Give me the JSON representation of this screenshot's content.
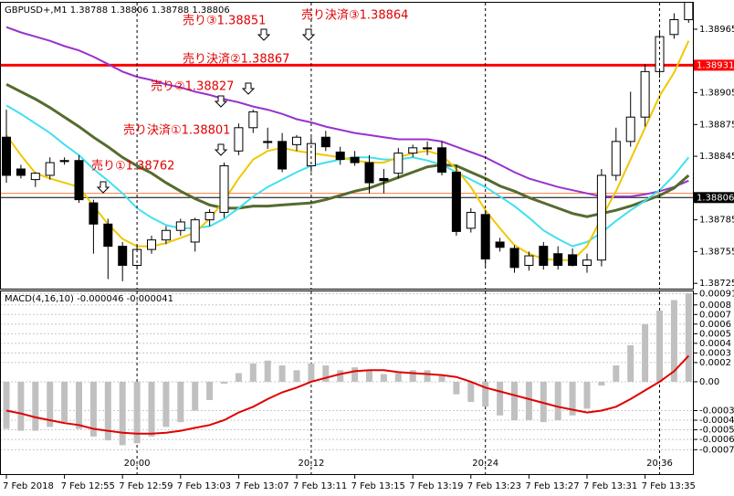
{
  "chart_data": [
    {
      "type": "candlestick",
      "title": "GBPUSD+,M1  1.38788 1.38806 1.38788 1.38806",
      "categories": [
        "7 Feb 2018",
        null,
        null,
        null,
        "7 Feb 12:55",
        null,
        null,
        null,
        "7 Feb 12:59",
        null,
        null,
        null,
        "7 Feb 13:03",
        null,
        null,
        null,
        "7 Feb 13:07",
        null,
        null,
        null,
        "7 Feb 13:11",
        null,
        null,
        null,
        "7 Feb 13:15",
        null,
        null,
        null,
        "7 Feb 13:19",
        null,
        null,
        null,
        "7 Feb 13:23",
        null,
        null,
        null,
        "7 Feb 13:27",
        null,
        null,
        null,
        "7 Feb 13:31",
        null,
        null,
        null,
        "7 Feb 13:35",
        null,
        null,
        null
      ],
      "open": [
        1.38863,
        1.38833,
        1.38823,
        1.38827,
        1.38841,
        1.38841,
        1.38801,
        1.38781,
        1.3876,
        1.38742,
        1.38757,
        1.38766,
        1.38775,
        1.38764,
        1.38785,
        1.38792,
        1.3885,
        1.38872,
        1.38859,
        1.38859,
        1.38856,
        1.38836,
        1.38863,
        1.38849,
        1.38844,
        1.38839,
        1.38824,
        1.38829,
        1.38848,
        1.38853,
        1.38853,
        1.3883,
        1.38777,
        1.3879,
        1.38764,
        1.38758,
        1.38742,
        1.3876,
        1.38753,
        1.38752,
        1.38742,
        1.38747,
        1.38827,
        1.38859,
        1.38882,
        1.38925,
        1.3896,
        1.38974
      ],
      "high": [
        1.38889,
        1.38837,
        1.3883,
        1.38844,
        1.38844,
        1.38846,
        1.38804,
        1.38786,
        1.38764,
        1.38762,
        1.3877,
        1.38779,
        1.38786,
        1.38787,
        1.38795,
        1.38839,
        1.38876,
        1.38889,
        1.38872,
        1.38867,
        1.38865,
        1.38863,
        1.38869,
        1.38854,
        1.3885,
        1.38846,
        1.38833,
        1.38853,
        1.38856,
        1.38859,
        1.38859,
        1.38837,
        1.38796,
        1.38794,
        1.38768,
        1.38761,
        1.38755,
        1.38764,
        1.3876,
        1.38758,
        1.38753,
        1.38833,
        1.38872,
        1.38906,
        1.38932,
        1.38962,
        1.3898,
        1.38993
      ],
      "low": [
        1.3882,
        1.38824,
        1.38816,
        1.38823,
        1.38837,
        1.38801,
        1.38753,
        1.38729,
        1.38727,
        1.38738,
        1.38753,
        1.38762,
        1.3877,
        1.38755,
        1.38779,
        1.38787,
        1.38846,
        1.38867,
        1.38852,
        1.3883,
        1.3885,
        1.3883,
        1.3885,
        1.38837,
        1.38836,
        1.3881,
        1.3881,
        1.38824,
        1.38844,
        1.38846,
        1.38827,
        1.3877,
        1.38773,
        1.38741,
        1.38755,
        1.38735,
        1.38737,
        1.38738,
        1.38738,
        1.38741,
        1.38735,
        1.38741,
        1.38822,
        1.38854,
        1.38873,
        1.38919,
        1.38956,
        1.38971
      ],
      "close": [
        1.38827,
        1.38827,
        1.38829,
        1.38839,
        1.3884,
        1.38804,
        1.38781,
        1.3876,
        1.38742,
        1.38757,
        1.38766,
        1.38775,
        1.38783,
        1.38785,
        1.38792,
        1.38836,
        1.38872,
        1.38887,
        1.38858,
        1.38833,
        1.38863,
        1.38857,
        1.38854,
        1.38842,
        1.38839,
        1.3882,
        1.38822,
        1.38848,
        1.38853,
        1.38852,
        1.3883,
        1.38774,
        1.38792,
        1.38748,
        1.38759,
        1.3874,
        1.38751,
        1.38742,
        1.38742,
        1.38742,
        1.38747,
        1.38827,
        1.38859,
        1.38882,
        1.38925,
        1.38958,
        1.38974,
        1.38993
      ],
      "up_color": "#ffffff",
      "down_color": "#000000",
      "overlays": [
        {
          "color": "#9932cc",
          "values": [
            1.38967,
            1.38962,
            1.38958,
            1.38954,
            1.38949,
            1.38945,
            1.38939,
            1.38932,
            1.38925,
            1.3892,
            1.38917,
            1.38913,
            1.3891,
            1.38906,
            1.38903,
            1.38899,
            1.38896,
            1.38892,
            1.38889,
            1.38885,
            1.3888,
            1.38877,
            1.38873,
            1.3887,
            1.38867,
            1.38865,
            1.38863,
            1.38861,
            1.38861,
            1.38861,
            1.38859,
            1.38854,
            1.38849,
            1.38844,
            1.38837,
            1.3883,
            1.38824,
            1.3882,
            1.38816,
            1.38813,
            1.3881,
            1.38807,
            1.38807,
            1.38807,
            1.38809,
            1.38812,
            1.38816,
            1.38822
          ]
        },
        {
          "color": "#556b2f",
          "values": [
            1.38913,
            1.38906,
            1.38899,
            1.38891,
            1.38882,
            1.38873,
            1.38863,
            1.38854,
            1.38844,
            1.38836,
            1.38829,
            1.3882,
            1.38812,
            1.38805,
            1.38799,
            1.38796,
            1.38796,
            1.38798,
            1.38798,
            1.38799,
            1.388,
            1.38801,
            1.38804,
            1.38808,
            1.38812,
            1.38815,
            1.3882,
            1.38825,
            1.3883,
            1.38835,
            1.38837,
            1.38836,
            1.3883,
            1.38824,
            1.38817,
            1.38812,
            1.38806,
            1.38801,
            1.38796,
            1.38791,
            1.38788,
            1.38791,
            1.38794,
            1.38798,
            1.38803,
            1.38808,
            1.38815,
            1.38827
          ]
        },
        {
          "color": "#40e0f0",
          "values": [
            1.38893,
            1.38885,
            1.38876,
            1.38867,
            1.38856,
            1.38846,
            1.38833,
            1.38822,
            1.3881,
            1.38796,
            1.38787,
            1.3878,
            1.38777,
            1.38777,
            1.38779,
            1.38786,
            1.38796,
            1.38807,
            1.38816,
            1.38823,
            1.3883,
            1.38836,
            1.38839,
            1.38842,
            1.38844,
            1.38844,
            1.38842,
            1.38842,
            1.38844,
            1.38841,
            1.38837,
            1.3883,
            1.38823,
            1.38816,
            1.38807,
            1.38798,
            1.38787,
            1.38775,
            1.38767,
            1.3876,
            1.38764,
            1.38773,
            1.38784,
            1.38794,
            1.38803,
            1.38813,
            1.38827,
            1.38844
          ]
        },
        {
          "color": "#f0c800",
          "values": [
            1.38865,
            1.38846,
            1.38829,
            1.38824,
            1.3882,
            1.38816,
            1.38798,
            1.38781,
            1.38767,
            1.3876,
            1.3876,
            1.38763,
            1.38768,
            1.38773,
            1.38786,
            1.38803,
            1.38824,
            1.38842,
            1.3885,
            1.38853,
            1.3885,
            1.38848,
            1.38846,
            1.38844,
            1.38841,
            1.38839,
            1.38839,
            1.38844,
            1.38848,
            1.3885,
            1.38846,
            1.38833,
            1.38816,
            1.38794,
            1.38777,
            1.38761,
            1.38753,
            1.38748,
            1.38747,
            1.38747,
            1.3876,
            1.38787,
            1.38812,
            1.38842,
            1.38872,
            1.38902,
            1.38924,
            1.38954
          ]
        }
      ],
      "levels": [
        {
          "value": 1.3881,
          "color": "#ff8040",
          "show_label": false
        },
        {
          "value": 1.38931,
          "color": "#ff0000",
          "show_label": true
        },
        {
          "value": 1.38806,
          "color": "#000000",
          "show_label": true
        }
      ],
      "annotations": [
        "売り①1.38762",
        "売り決済①1.38801",
        "売り②1.38827",
        "売り決済②1.38867",
        "売り③1.38851",
        "売り決済③1.38864"
      ],
      "annotation_color": "#e00000",
      "ylim": [
        1.3872,
        1.3899
      ],
      "yticks": [
        1.38965,
        1.38905,
        1.38875,
        1.38845,
        1.38785,
        1.38755,
        1.38725
      ]
    },
    {
      "type": "macd",
      "title": "MACD(4,16,10) -0.000046 -0.000041",
      "categories": [
        null,
        null,
        null,
        null,
        null,
        null,
        null,
        null,
        null,
        "20:00",
        null,
        null,
        null,
        null,
        null,
        null,
        null,
        null,
        null,
        null,
        null,
        "20:12",
        null,
        null,
        null,
        null,
        null,
        null,
        null,
        null,
        null,
        null,
        null,
        "20:24",
        null,
        null,
        null,
        null,
        null,
        null,
        null,
        null,
        null,
        null,
        null,
        "20:36",
        null,
        null
      ],
      "histogram": {
        "color": "#c0c0c0",
        "values": [
          -0.00049,
          -0.00051,
          -0.00051,
          -0.00047,
          -0.00042,
          -0.00049,
          -0.00057,
          -0.00061,
          -0.00066,
          -0.00064,
          -0.00057,
          -0.00047,
          -0.00042,
          -0.0003,
          -0.00019,
          -2e-05,
          9e-05,
          0.00019,
          0.00022,
          0.00017,
          0.00012,
          0.00019,
          0.00017,
          0.00012,
          0.00015,
          0.00012,
          8e-05,
          9e-05,
          0.00012,
          0.00012,
          6e-05,
          -0.00013,
          -0.00021,
          -0.00026,
          -0.00035,
          -0.0004,
          -0.0004,
          -0.00042,
          -0.0004,
          -0.00035,
          -0.00028,
          -4e-05,
          0.00017,
          0.00038,
          0.0006,
          0.00074,
          0.00085,
          0.00092
        ]
      },
      "signal": {
        "color": "#e00000",
        "values": [
          -0.0003,
          -0.00033,
          -0.00037,
          -0.0004,
          -0.00043,
          -0.00045,
          -0.00049,
          -0.00051,
          -0.00053,
          -0.00054,
          -0.00054,
          -0.00053,
          -0.00051,
          -0.00048,
          -0.00045,
          -0.0004,
          -0.00032,
          -0.00026,
          -0.00018,
          -0.00011,
          -6e-05,
          0,
          4e-05,
          8e-05,
          0.00011,
          0.00012,
          0.00012,
          0.0001,
          9e-05,
          8e-05,
          7e-05,
          5e-05,
          0,
          -6e-05,
          -0.0001,
          -0.00014,
          -0.00018,
          -0.00022,
          -0.00026,
          -0.00029,
          -0.00032,
          -0.0003,
          -0.00026,
          -0.00018,
          -9e-05,
          0,
          0.00011,
          0.00027
        ]
      },
      "ylim": [
        -0.00078,
        0.00095
      ],
      "yticks": [
        0.000915,
        0.0008,
        0.0007,
        0.0006,
        0.0005,
        0.0004,
        0.0003,
        0.0002,
        {
          "value": 0,
          "label": "0.00"
        },
        -0.0003,
        -0.0004,
        -0.0005,
        -0.0006,
        -0.000707
      ],
      "grid": true
    }
  ]
}
